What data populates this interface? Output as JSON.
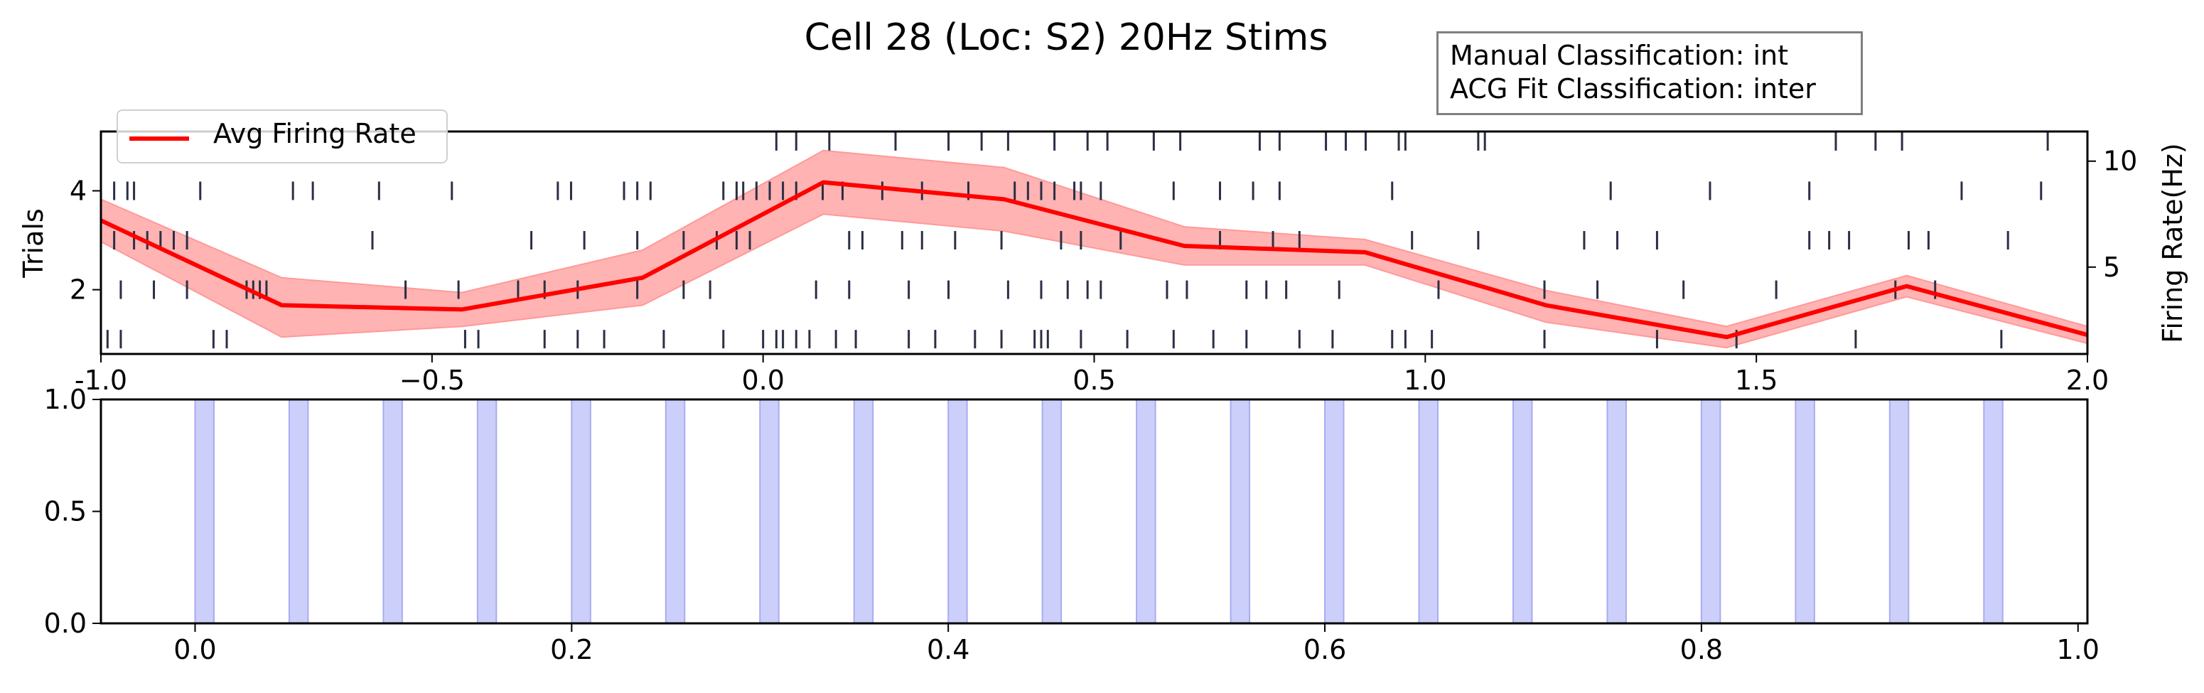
{
  "title": "Cell 28 (Loc: S2) 20Hz Stims",
  "info_box": {
    "line1": "Manual Classification: int",
    "line2": "ACG Fit Classification: inter"
  },
  "legend": {
    "label": "Avg Firing Rate"
  },
  "colors": {
    "rate_line": "#ff0000",
    "rate_band": "#ff9999",
    "raster": "#2b2f45",
    "stim": "#cccff9",
    "stim_edge": "#a9acf2"
  },
  "chart_data": [
    {
      "type": "line",
      "subtype": "raster + firing-rate overlay",
      "ylabel": "Trials",
      "ylabel_right": "Firing Rate(Hz)",
      "xlim": [
        -1.0,
        2.0
      ],
      "ylim_left": [
        0.7,
        5.2
      ],
      "ylim_right": [
        0.9,
        11.4
      ],
      "xticks": [
        "-1.0",
        "−0.5",
        "0.0",
        "0.5",
        "1.0",
        "1.5",
        "2.0"
      ],
      "xtick_values": [
        -1.0,
        -0.5,
        0.0,
        0.5,
        1.0,
        1.5,
        2.0
      ],
      "yticks_left": [
        "2",
        "4"
      ],
      "ytick_left_values": [
        2,
        4
      ],
      "yticks_right": [
        "5",
        "10"
      ],
      "ytick_right_values": [
        5,
        10
      ],
      "series": [
        {
          "name": "Avg Firing Rate",
          "x": [
            -1.0,
            -0.727,
            -0.455,
            -0.182,
            0.091,
            0.364,
            0.636,
            0.909,
            1.182,
            1.455,
            1.727,
            2.0
          ],
          "y": [
            7.2,
            3.2,
            3.0,
            4.5,
            9.0,
            8.2,
            6.0,
            5.7,
            3.2,
            1.7,
            4.1,
            1.8
          ],
          "lower": [
            6.2,
            1.7,
            2.2,
            3.2,
            7.5,
            6.7,
            5.1,
            5.1,
            2.4,
            1.2,
            3.6,
            1.4
          ],
          "upper": [
            8.2,
            4.5,
            3.8,
            5.8,
            10.5,
            9.7,
            6.9,
            6.3,
            3.9,
            2.2,
            4.6,
            2.2
          ]
        }
      ],
      "raster_trials": [
        {
          "trial": 1,
          "spikes": [
            -0.99,
            -0.97,
            -0.83,
            -0.81,
            -0.45,
            -0.43,
            -0.33,
            -0.28,
            -0.24,
            -0.15,
            -0.06,
            0.0,
            0.02,
            0.03,
            0.05,
            0.07,
            0.11,
            0.14,
            0.22,
            0.26,
            0.32,
            0.36,
            0.41,
            0.42,
            0.43,
            0.48,
            0.55,
            0.62,
            0.68,
            0.73,
            0.81,
            0.86,
            0.95,
            0.97,
            1.01,
            1.18,
            1.35,
            1.47,
            1.65,
            1.87
          ]
        },
        {
          "trial": 2,
          "spikes": [
            -0.97,
            -0.92,
            -0.87,
            -0.78,
            -0.77,
            -0.76,
            -0.75,
            -0.54,
            -0.46,
            -0.37,
            -0.33,
            -0.28,
            -0.19,
            -0.12,
            -0.08,
            0.08,
            0.13,
            0.22,
            0.28,
            0.37,
            0.42,
            0.46,
            0.49,
            0.51,
            0.61,
            0.64,
            0.73,
            0.76,
            0.79,
            0.87,
            1.02,
            1.18,
            1.26,
            1.39,
            1.53,
            1.71,
            1.77
          ]
        },
        {
          "trial": 3,
          "spikes": [
            -0.98,
            -0.95,
            -0.93,
            -0.91,
            -0.89,
            -0.87,
            -0.59,
            -0.35,
            -0.27,
            -0.19,
            -0.12,
            -0.07,
            -0.04,
            -0.02,
            0.13,
            0.15,
            0.21,
            0.24,
            0.29,
            0.36,
            0.45,
            0.48,
            0.54,
            0.69,
            0.77,
            0.81,
            0.98,
            1.08,
            1.24,
            1.29,
            1.35,
            1.58,
            1.61,
            1.64,
            1.73,
            1.76,
            1.88
          ]
        },
        {
          "trial": 4,
          "spikes": [
            -0.98,
            -0.96,
            -0.95,
            -0.85,
            -0.71,
            -0.68,
            -0.58,
            -0.47,
            -0.31,
            -0.29,
            -0.21,
            -0.19,
            -0.17,
            -0.06,
            -0.04,
            -0.03,
            -0.01,
            0.01,
            0.03,
            0.05,
            0.09,
            0.12,
            0.18,
            0.24,
            0.31,
            0.38,
            0.4,
            0.42,
            0.44,
            0.47,
            0.48,
            0.51,
            0.62,
            0.69,
            0.74,
            0.78,
            0.95,
            1.28,
            1.43,
            1.58,
            1.81,
            1.93
          ]
        },
        {
          "trial": 5,
          "spikes": [
            0.02,
            0.05,
            0.1,
            0.2,
            0.28,
            0.33,
            0.37,
            0.44,
            0.49,
            0.52,
            0.59,
            0.63,
            0.75,
            0.78,
            0.85,
            0.88,
            0.91,
            0.96,
            0.97,
            1.08,
            1.09,
            1.62,
            1.68,
            1.72,
            1.94
          ]
        }
      ]
    },
    {
      "type": "bar",
      "subtype": "stimulus intervals (axvspan)",
      "xlim": [
        -0.05,
        1.005
      ],
      "ylim": [
        0.0,
        1.0
      ],
      "xticks": [
        "0.0",
        "0.2",
        "0.4",
        "0.6",
        "0.8",
        "1.0"
      ],
      "xtick_values": [
        0.0,
        0.2,
        0.4,
        0.6,
        0.8,
        1.0
      ],
      "yticks": [
        "0.0",
        "0.5",
        "1.0"
      ],
      "ytick_values": [
        0.0,
        0.5,
        1.0
      ],
      "stim_starts": [
        0.0,
        0.05,
        0.1,
        0.15,
        0.2,
        0.25,
        0.3,
        0.35,
        0.4,
        0.45,
        0.5,
        0.55,
        0.6,
        0.65,
        0.7,
        0.75,
        0.8,
        0.85,
        0.9,
        0.95
      ],
      "stim_duration": 0.01
    }
  ]
}
